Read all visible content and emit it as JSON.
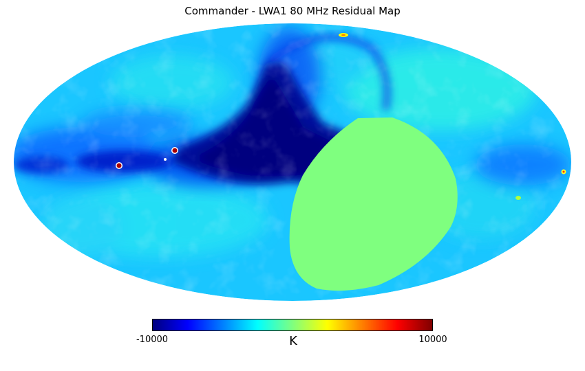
{
  "title": "Commander - LWA1 80 MHz Residual Map",
  "colorbar": {
    "min_label": "-10000",
    "max_label": "10000",
    "unit_label": "K",
    "min": -10000,
    "max": 10000,
    "colormap": "jet"
  },
  "colors": {
    "jet_stops": [
      "#00007f",
      "#0000ff",
      "#007fff",
      "#00ffff",
      "#7fff7f",
      "#ffff00",
      "#ff7f00",
      "#ff0000",
      "#7f0000"
    ],
    "masked_region": "#7fff7f",
    "background_sky": "#19c8ff",
    "galactic_plane": "#000080"
  },
  "projection": "mollweide"
}
